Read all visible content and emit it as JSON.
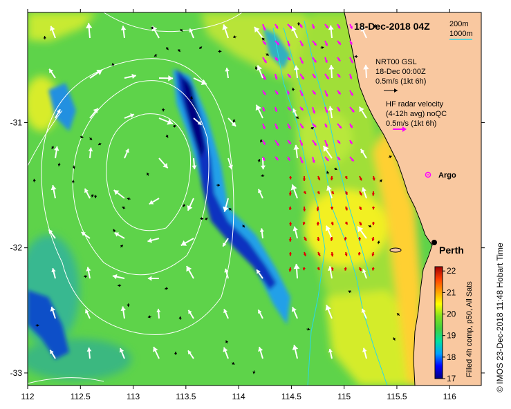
{
  "title": "18-Dec-2018 04Z",
  "scale_labels": [
    "200m",
    "1000m"
  ],
  "gsl_legend": {
    "lines": [
      "NRT00 GSL",
      "18-Dec 00:00Z",
      "0.5m/s (1kt 6h)"
    ],
    "arrow_color": "#000000"
  },
  "hf_legend": {
    "lines": [
      "HF radar velocity",
      "(4-12h avg) noQC",
      "0.5m/s (1kt 6h)"
    ],
    "arrow_color": "#ff00ff"
  },
  "argo_label": "Argo",
  "city_label": "Perth",
  "colorbar": {
    "label": "Filled 4h comp, p50, All Sats",
    "ticks": [
      17,
      18,
      19,
      20,
      21,
      22
    ],
    "range": [
      17,
      22.2
    ],
    "stops": [
      "#000080",
      "#0000ff",
      "#00a0ff",
      "#00e0a0",
      "#40d040",
      "#80e020",
      "#ffff00",
      "#ffa000",
      "#ff4000",
      "#a00000"
    ]
  },
  "credit": "© IMOS 23-Dec-2018 11:48 Hobart Time",
  "axes": {
    "x_ticks": [
      "112",
      "112.5",
      "113",
      "113.5",
      "114",
      "114.5",
      "115",
      "115.5",
      "116"
    ],
    "x_values": [
      112,
      112.5,
      113,
      113.5,
      114,
      114.5,
      115,
      115.5,
      116
    ],
    "y_ticks": [
      "-31",
      "-32",
      "-33"
    ],
    "y_values": [
      -31,
      -32,
      -33
    ],
    "lon_range": [
      112,
      116.3
    ],
    "lat_range": [
      -30.12,
      -33.1
    ]
  },
  "colors": {
    "land": "#f9c8a0",
    "sea_base": "#5ed34a",
    "coastline": "#000000",
    "contour": "#ffffff",
    "bathy": "#28d8e8",
    "hf_arrow": "#ff00ff",
    "hf_arrow_south": "#e00000",
    "gsl_arrow": "#ffffff",
    "argo": "#ff00ff",
    "city_dot": "#000000"
  }
}
